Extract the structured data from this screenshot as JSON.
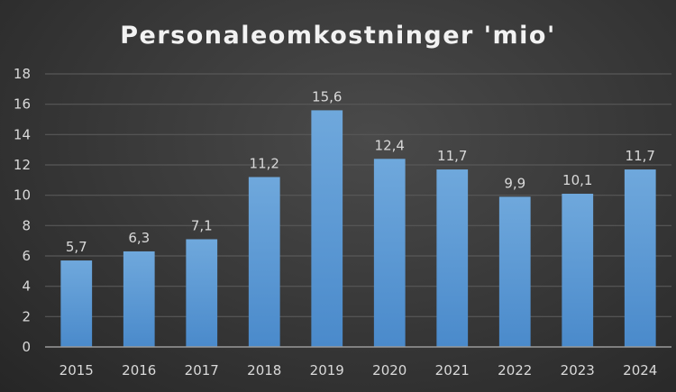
{
  "chart_data": {
    "type": "bar",
    "title": "Personaleomkostninger 'mio'",
    "xlabel": "",
    "ylabel": "",
    "categories": [
      "2015",
      "2016",
      "2017",
      "2018",
      "2019",
      "2020",
      "2021",
      "2022",
      "2023",
      "2024"
    ],
    "values": [
      5.7,
      6.3,
      7.1,
      11.2,
      15.6,
      12.4,
      11.7,
      9.9,
      10.1,
      11.7
    ],
    "data_labels": [
      "5,7",
      "6,3",
      "7,1",
      "11,2",
      "15,6",
      "12,4",
      "11,7",
      "9,9",
      "10,1",
      "11,7"
    ],
    "ylim": [
      0,
      18
    ],
    "yticks": [
      0,
      2,
      4,
      6,
      8,
      10,
      12,
      14,
      16,
      18
    ],
    "grid": true,
    "legend": "none",
    "bar_color": "#5b9bd5",
    "background_color": "#3a3a3a"
  }
}
